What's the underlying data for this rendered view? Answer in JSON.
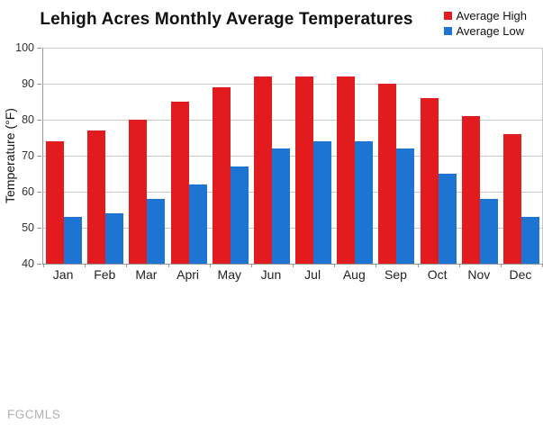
{
  "watermark": "FGCMLS",
  "chart_data": {
    "type": "bar",
    "title": "Lehigh Acres Monthly Average Temperatures",
    "categories": [
      "Jan",
      "Feb",
      "Mar",
      "Apri",
      "May",
      "Jun",
      "Jul",
      "Aug",
      "Sep",
      "Oct",
      "Nov",
      "Dec"
    ],
    "series": [
      {
        "name": "Average High",
        "color": "#e11b1e",
        "values": [
          74,
          77,
          80,
          85,
          89,
          92,
          92,
          92,
          90,
          86,
          81,
          76
        ]
      },
      {
        "name": "Average Low",
        "color": "#1d74d2",
        "values": [
          53,
          54,
          58,
          62,
          67,
          72,
          74,
          74,
          72,
          65,
          58,
          53
        ]
      }
    ],
    "xlabel": "",
    "ylabel": "Temperature (°F)",
    "ylim": [
      40,
      100
    ],
    "ytick_step": 10,
    "grid": true,
    "legend_position": "top-right"
  }
}
